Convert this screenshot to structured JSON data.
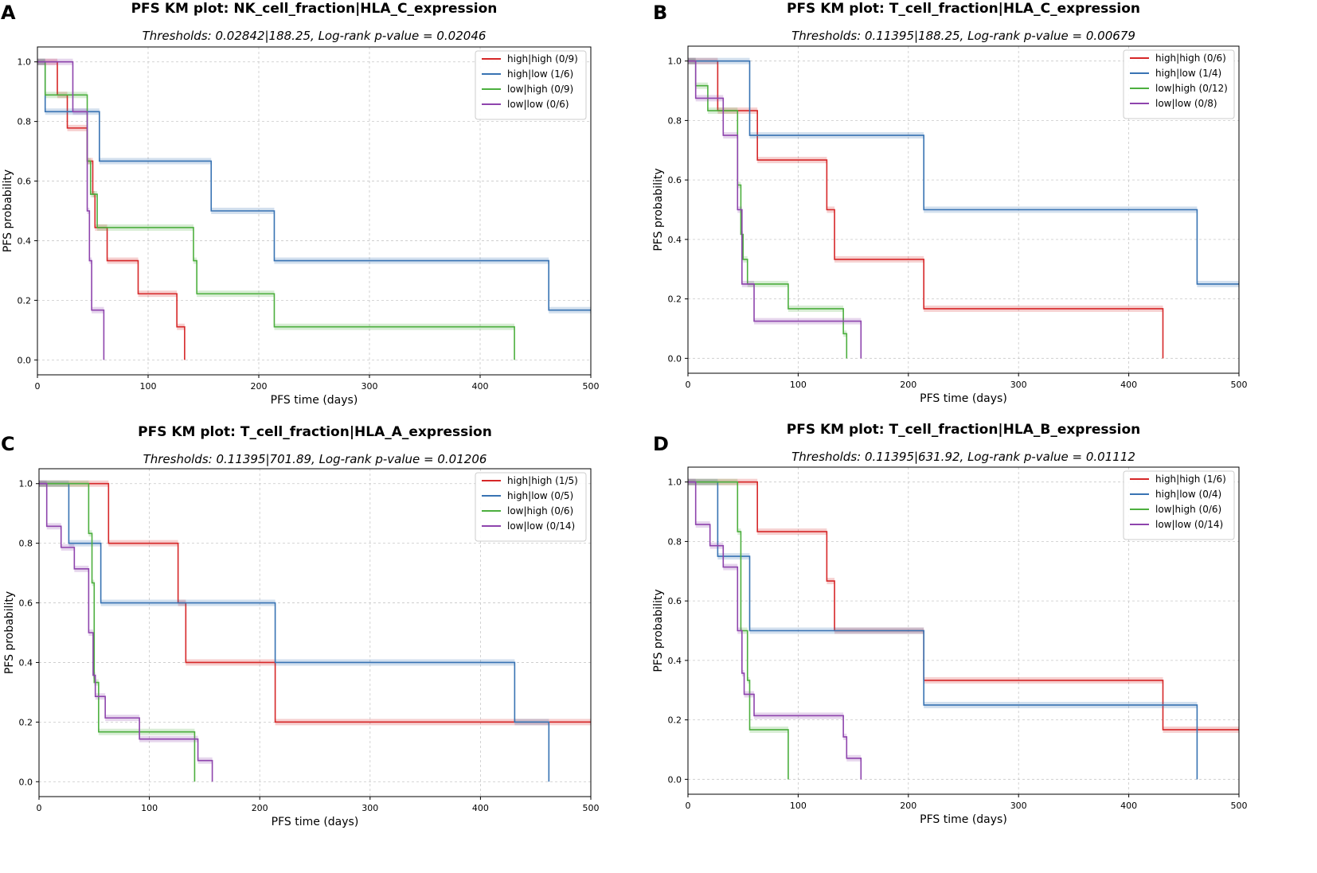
{
  "chart_data": [
    {
      "type": "line",
      "step": true,
      "panel_label": "A",
      "title": "PFS KM plot: NK_cell_fraction|HLA_C_expression",
      "subtitle": "Thresholds: 0.02842|188.25, Log-rank p-value = 0.02046",
      "xlabel": "PFS time (days)",
      "ylabel": "PFS probability",
      "xlim": [
        0,
        500
      ],
      "ylim": [
        -0.05,
        1.05
      ],
      "xticks": [
        "0",
        "100",
        "200",
        "300",
        "400",
        "500"
      ],
      "yticks": [
        "0.0",
        "0.2",
        "0.4",
        "0.6",
        "0.8",
        "1.0"
      ],
      "grid": true,
      "legend_position": "top-right",
      "series": [
        {
          "name": "high|high (0/9)",
          "color": "#d62728",
          "points": [
            [
              0,
              1.0
            ],
            [
              18,
              1.0
            ],
            [
              18,
              0.889
            ],
            [
              27,
              0.889
            ],
            [
              27,
              0.778
            ],
            [
              45,
              0.778
            ],
            [
              45,
              0.667
            ],
            [
              50,
              0.667
            ],
            [
              50,
              0.556
            ],
            [
              52,
              0.556
            ],
            [
              52,
              0.444
            ],
            [
              63,
              0.444
            ],
            [
              63,
              0.333
            ],
            [
              91,
              0.333
            ],
            [
              91,
              0.222
            ],
            [
              126,
              0.222
            ],
            [
              126,
              0.111
            ],
            [
              133,
              0.111
            ],
            [
              133,
              0.0
            ]
          ]
        },
        {
          "name": "high|low (1/6)",
          "color": "#3873b3",
          "points": [
            [
              0,
              1.0
            ],
            [
              7,
              1.0
            ],
            [
              7,
              0.833
            ],
            [
              56,
              0.833
            ],
            [
              56,
              0.667
            ],
            [
              157,
              0.667
            ],
            [
              157,
              0.5
            ],
            [
              214,
              0.5
            ],
            [
              214,
              0.333
            ],
            [
              462,
              0.333
            ],
            [
              462,
              0.167
            ],
            [
              500,
              0.167
            ]
          ]
        },
        {
          "name": "low|high (0/9)",
          "color": "#4caf3e",
          "points": [
            [
              0,
              1.0
            ],
            [
              7,
              1.0
            ],
            [
              7,
              0.889
            ],
            [
              45,
              0.889
            ],
            [
              45,
              0.667
            ],
            [
              48,
              0.667
            ],
            [
              48,
              0.556
            ],
            [
              54,
              0.556
            ],
            [
              54,
              0.444
            ],
            [
              141,
              0.444
            ],
            [
              141,
              0.333
            ],
            [
              144,
              0.333
            ],
            [
              144,
              0.222
            ],
            [
              214,
              0.222
            ],
            [
              214,
              0.111
            ],
            [
              431,
              0.111
            ],
            [
              431,
              0.0
            ]
          ]
        },
        {
          "name": "low|low (0/6)",
          "color": "#8e44ad",
          "points": [
            [
              0,
              1.0
            ],
            [
              32,
              1.0
            ],
            [
              32,
              0.833
            ],
            [
              45,
              0.833
            ],
            [
              45,
              0.5
            ],
            [
              47,
              0.5
            ],
            [
              47,
              0.333
            ],
            [
              49,
              0.333
            ],
            [
              49,
              0.167
            ],
            [
              60,
              0.167
            ],
            [
              60,
              0.0
            ]
          ]
        }
      ]
    },
    {
      "type": "line",
      "step": true,
      "panel_label": "B",
      "title": "PFS KM plot: T_cell_fraction|HLA_C_expression",
      "subtitle": "Thresholds: 0.11395|188.25, Log-rank p-value = 0.00679",
      "xlabel": "PFS time (days)",
      "ylabel": "PFS probability",
      "xlim": [
        0,
        500
      ],
      "ylim": [
        -0.05,
        1.05
      ],
      "xticks": [
        "0",
        "100",
        "200",
        "300",
        "400",
        "500"
      ],
      "yticks": [
        "0.0",
        "0.2",
        "0.4",
        "0.6",
        "0.8",
        "1.0"
      ],
      "grid": true,
      "legend_position": "top-right",
      "series": [
        {
          "name": "high|high (0/6)",
          "color": "#d62728",
          "points": [
            [
              0,
              1.0
            ],
            [
              27,
              1.0
            ],
            [
              27,
              0.833
            ],
            [
              63,
              0.833
            ],
            [
              63,
              0.667
            ],
            [
              126,
              0.667
            ],
            [
              126,
              0.5
            ],
            [
              133,
              0.5
            ],
            [
              133,
              0.333
            ],
            [
              214,
              0.333
            ],
            [
              214,
              0.167
            ],
            [
              431,
              0.167
            ],
            [
              431,
              0.0
            ]
          ]
        },
        {
          "name": "high|low (1/4)",
          "color": "#3873b3",
          "points": [
            [
              0,
              1.0
            ],
            [
              56,
              1.0
            ],
            [
              56,
              0.75
            ],
            [
              214,
              0.75
            ],
            [
              214,
              0.5
            ],
            [
              462,
              0.5
            ],
            [
              462,
              0.25
            ],
            [
              500,
              0.25
            ]
          ]
        },
        {
          "name": "low|high (0/12)",
          "color": "#4caf3e",
          "points": [
            [
              0,
              1.0
            ],
            [
              7,
              1.0
            ],
            [
              7,
              0.917
            ],
            [
              18,
              0.917
            ],
            [
              18,
              0.833
            ],
            [
              45,
              0.833
            ],
            [
              45,
              0.583
            ],
            [
              48,
              0.583
            ],
            [
              48,
              0.417
            ],
            [
              50,
              0.417
            ],
            [
              50,
              0.333
            ],
            [
              54,
              0.333
            ],
            [
              54,
              0.25
            ],
            [
              91,
              0.25
            ],
            [
              91,
              0.167
            ],
            [
              141,
              0.167
            ],
            [
              141,
              0.083
            ],
            [
              144,
              0.083
            ],
            [
              144,
              0.0
            ]
          ]
        },
        {
          "name": "low|low (0/8)",
          "color": "#8e44ad",
          "points": [
            [
              0,
              1.0
            ],
            [
              7,
              1.0
            ],
            [
              7,
              0.875
            ],
            [
              32,
              0.875
            ],
            [
              32,
              0.75
            ],
            [
              45,
              0.75
            ],
            [
              45,
              0.5
            ],
            [
              49,
              0.5
            ],
            [
              49,
              0.25
            ],
            [
              60,
              0.25
            ],
            [
              60,
              0.125
            ],
            [
              157,
              0.125
            ],
            [
              157,
              0.0
            ]
          ]
        }
      ]
    },
    {
      "type": "line",
      "step": true,
      "panel_label": "C",
      "title": "PFS KM plot: T_cell_fraction|HLA_A_expression",
      "subtitle": "Thresholds: 0.11395|701.89, Log-rank p-value = 0.01206",
      "xlabel": "PFS time (days)",
      "ylabel": "PFS probability",
      "xlim": [
        0,
        500
      ],
      "ylim": [
        -0.05,
        1.05
      ],
      "xticks": [
        "0",
        "100",
        "200",
        "300",
        "400",
        "500"
      ],
      "yticks": [
        "0.0",
        "0.2",
        "0.4",
        "0.6",
        "0.8",
        "1.0"
      ],
      "grid": true,
      "legend_position": "top-right",
      "series": [
        {
          "name": "high|high (1/5)",
          "color": "#d62728",
          "points": [
            [
              0,
              1.0
            ],
            [
              63,
              1.0
            ],
            [
              63,
              0.8
            ],
            [
              126,
              0.8
            ],
            [
              126,
              0.6
            ],
            [
              133,
              0.6
            ],
            [
              133,
              0.4
            ],
            [
              214,
              0.4
            ],
            [
              214,
              0.2
            ],
            [
              500,
              0.2
            ]
          ]
        },
        {
          "name": "high|low (0/5)",
          "color": "#3873b3",
          "points": [
            [
              0,
              1.0
            ],
            [
              27,
              1.0
            ],
            [
              27,
              0.8
            ],
            [
              56,
              0.8
            ],
            [
              56,
              0.6
            ],
            [
              214,
              0.6
            ],
            [
              214,
              0.4
            ],
            [
              431,
              0.4
            ],
            [
              431,
              0.2
            ],
            [
              462,
              0.2
            ],
            [
              462,
              0.0
            ]
          ]
        },
        {
          "name": "low|high (0/6)",
          "color": "#4caf3e",
          "points": [
            [
              0,
              1.0
            ],
            [
              45,
              1.0
            ],
            [
              45,
              0.833
            ],
            [
              48,
              0.833
            ],
            [
              48,
              0.667
            ],
            [
              50,
              0.667
            ],
            [
              50,
              0.333
            ],
            [
              54,
              0.333
            ],
            [
              54,
              0.167
            ],
            [
              141,
              0.167
            ],
            [
              141,
              0.0
            ]
          ]
        },
        {
          "name": "low|low (0/14)",
          "color": "#8e44ad",
          "points": [
            [
              0,
              1.0
            ],
            [
              7,
              1.0
            ],
            [
              7,
              0.857
            ],
            [
              20,
              0.857
            ],
            [
              20,
              0.786
            ],
            [
              32,
              0.786
            ],
            [
              32,
              0.714
            ],
            [
              45,
              0.714
            ],
            [
              45,
              0.5
            ],
            [
              49,
              0.5
            ],
            [
              49,
              0.357
            ],
            [
              51,
              0.357
            ],
            [
              51,
              0.286
            ],
            [
              60,
              0.286
            ],
            [
              60,
              0.214
            ],
            [
              91,
              0.214
            ],
            [
              91,
              0.143
            ],
            [
              144,
              0.143
            ],
            [
              144,
              0.071
            ],
            [
              157,
              0.071
            ],
            [
              157,
              0.0
            ]
          ]
        }
      ]
    },
    {
      "type": "line",
      "step": true,
      "panel_label": "D",
      "title": "PFS KM plot: T_cell_fraction|HLA_B_expression",
      "subtitle": "Thresholds: 0.11395|631.92, Log-rank p-value = 0.01112",
      "xlabel": "PFS time (days)",
      "ylabel": "PFS probability",
      "xlim": [
        0,
        500
      ],
      "ylim": [
        -0.05,
        1.05
      ],
      "xticks": [
        "0",
        "100",
        "200",
        "300",
        "400",
        "500"
      ],
      "yticks": [
        "0.0",
        "0.2",
        "0.4",
        "0.6",
        "0.8",
        "1.0"
      ],
      "grid": true,
      "legend_position": "top-right",
      "series": [
        {
          "name": "high|high (1/6)",
          "color": "#d62728",
          "points": [
            [
              0,
              1.0
            ],
            [
              63,
              1.0
            ],
            [
              63,
              0.833
            ],
            [
              126,
              0.833
            ],
            [
              126,
              0.667
            ],
            [
              133,
              0.667
            ],
            [
              133,
              0.5
            ],
            [
              214,
              0.5
            ],
            [
              214,
              0.333
            ],
            [
              431,
              0.333
            ],
            [
              431,
              0.167
            ],
            [
              500,
              0.167
            ]
          ]
        },
        {
          "name": "high|low (0/4)",
          "color": "#3873b3",
          "points": [
            [
              0,
              1.0
            ],
            [
              27,
              1.0
            ],
            [
              27,
              0.75
            ],
            [
              56,
              0.75
            ],
            [
              56,
              0.5
            ],
            [
              214,
              0.5
            ],
            [
              214,
              0.25
            ],
            [
              462,
              0.25
            ],
            [
              462,
              0.0
            ]
          ]
        },
        {
          "name": "low|high (0/6)",
          "color": "#4caf3e",
          "points": [
            [
              0,
              1.0
            ],
            [
              45,
              1.0
            ],
            [
              45,
              0.833
            ],
            [
              48,
              0.833
            ],
            [
              48,
              0.5
            ],
            [
              54,
              0.5
            ],
            [
              54,
              0.333
            ],
            [
              56,
              0.333
            ],
            [
              56,
              0.167
            ],
            [
              91,
              0.167
            ],
            [
              91,
              0.0
            ]
          ]
        },
        {
          "name": "low|low (0/14)",
          "color": "#8e44ad",
          "points": [
            [
              0,
              1.0
            ],
            [
              7,
              1.0
            ],
            [
              7,
              0.857
            ],
            [
              20,
              0.857
            ],
            [
              20,
              0.786
            ],
            [
              32,
              0.786
            ],
            [
              32,
              0.714
            ],
            [
              45,
              0.714
            ],
            [
              45,
              0.5
            ],
            [
              49,
              0.5
            ],
            [
              49,
              0.357
            ],
            [
              51,
              0.357
            ],
            [
              51,
              0.286
            ],
            [
              60,
              0.286
            ],
            [
              60,
              0.214
            ],
            [
              141,
              0.214
            ],
            [
              141,
              0.143
            ],
            [
              144,
              0.143
            ],
            [
              144,
              0.071
            ],
            [
              157,
              0.071
            ],
            [
              157,
              0.0
            ]
          ]
        }
      ]
    }
  ]
}
